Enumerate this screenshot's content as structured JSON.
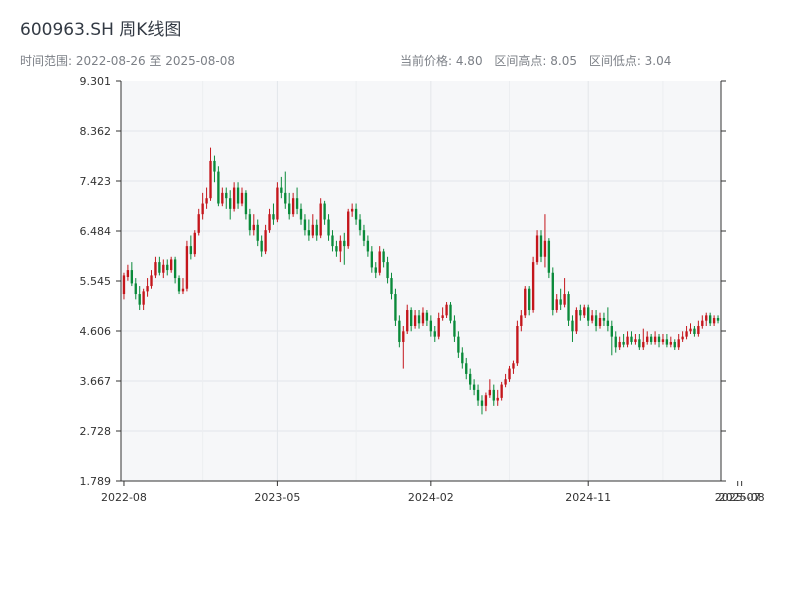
{
  "header": {
    "title": "600963.SH 周K线图",
    "time_range": "时间范围: 2022-08-26 至 2025-08-08",
    "current_price": "当前价格: 4.80",
    "range_high": "区间高点: 8.05",
    "range_low": "区间低点: 3.04"
  },
  "chart_data": {
    "type": "candlestick",
    "title": "600963.SH 周K线图",
    "date_range": [
      "2022-08-26",
      "2025-08-08"
    ],
    "ylim": [
      1.789,
      9.301
    ],
    "y_ticks": [
      "1.789",
      "2.728",
      "3.667",
      "4.606",
      "5.545",
      "6.484",
      "7.423",
      "8.362",
      "9.301"
    ],
    "x_ticks": [
      {
        "label": "2022-08",
        "index": 0
      },
      {
        "label": "2023-05",
        "index": 39
      },
      {
        "label": "2024-02",
        "index": 78
      },
      {
        "label": "2024-11",
        "index": 118
      },
      {
        "label": "2025-07",
        "index": 156
      },
      {
        "label": "2025-08",
        "index": 157
      }
    ],
    "grid": true,
    "up_color": "#c4161c",
    "down_color": "#0a8a3a",
    "candles": [
      [
        5.3,
        5.65,
        5.7,
        5.2
      ],
      [
        5.62,
        5.75,
        5.85,
        5.55
      ],
      [
        5.75,
        5.5,
        5.9,
        5.45
      ],
      [
        5.5,
        5.3,
        5.6,
        5.2
      ],
      [
        5.3,
        5.1,
        5.45,
        5.0
      ],
      [
        5.1,
        5.35,
        5.4,
        5.0
      ],
      [
        5.35,
        5.45,
        5.6,
        5.25
      ],
      [
        5.45,
        5.65,
        5.75,
        5.4
      ],
      [
        5.65,
        5.9,
        6.0,
        5.6
      ],
      [
        5.9,
        5.7,
        6.0,
        5.65
      ],
      [
        5.7,
        5.85,
        5.95,
        5.6
      ],
      [
        5.85,
        5.75,
        5.95,
        5.65
      ],
      [
        5.75,
        5.95,
        6.0,
        5.7
      ],
      [
        5.95,
        5.6,
        6.0,
        5.5
      ],
      [
        5.6,
        5.35,
        5.65,
        5.3
      ],
      [
        5.35,
        5.4,
        5.6,
        5.3
      ],
      [
        5.4,
        6.2,
        6.3,
        5.35
      ],
      [
        6.2,
        6.05,
        6.4,
        5.95
      ],
      [
        6.05,
        6.45,
        6.5,
        6.0
      ],
      [
        6.45,
        6.8,
        6.9,
        6.4
      ],
      [
        6.8,
        7.0,
        7.2,
        6.7
      ],
      [
        7.0,
        7.1,
        7.3,
        6.9
      ],
      [
        7.1,
        7.8,
        8.05,
        7.05
      ],
      [
        7.8,
        7.6,
        7.9,
        7.4
      ],
      [
        7.6,
        7.0,
        7.7,
        6.95
      ],
      [
        7.0,
        7.2,
        7.3,
        6.95
      ],
      [
        7.2,
        7.1,
        7.3,
        6.9
      ],
      [
        7.1,
        6.9,
        7.25,
        6.7
      ],
      [
        6.9,
        7.3,
        7.4,
        6.85
      ],
      [
        7.3,
        7.0,
        7.4,
        6.9
      ],
      [
        7.0,
        7.2,
        7.3,
        6.95
      ],
      [
        7.2,
        6.8,
        7.25,
        6.7
      ],
      [
        6.8,
        6.5,
        6.9,
        6.4
      ],
      [
        6.5,
        6.6,
        6.8,
        6.4
      ],
      [
        6.6,
        6.3,
        6.7,
        6.2
      ],
      [
        6.3,
        6.1,
        6.4,
        6.0
      ],
      [
        6.1,
        6.5,
        6.6,
        6.05
      ],
      [
        6.5,
        6.8,
        6.9,
        6.45
      ],
      [
        6.8,
        6.7,
        7.0,
        6.6
      ],
      [
        6.7,
        7.3,
        7.4,
        6.65
      ],
      [
        7.3,
        7.2,
        7.5,
        7.1
      ],
      [
        7.2,
        7.0,
        7.6,
        6.9
      ],
      [
        7.0,
        6.8,
        7.2,
        6.7
      ],
      [
        6.8,
        7.1,
        7.2,
        6.75
      ],
      [
        7.1,
        6.9,
        7.3,
        6.8
      ],
      [
        6.9,
        6.7,
        7.0,
        6.6
      ],
      [
        6.7,
        6.5,
        6.8,
        6.4
      ],
      [
        6.5,
        6.4,
        6.7,
        6.3
      ],
      [
        6.4,
        6.6,
        6.8,
        6.35
      ],
      [
        6.6,
        6.4,
        6.7,
        6.3
      ],
      [
        6.4,
        7.0,
        7.1,
        6.35
      ],
      [
        7.0,
        6.7,
        7.05,
        6.6
      ],
      [
        6.7,
        6.4,
        6.8,
        6.3
      ],
      [
        6.4,
        6.2,
        6.5,
        6.1
      ],
      [
        6.2,
        6.1,
        6.3,
        6.0
      ],
      [
        6.1,
        6.3,
        6.4,
        5.9
      ],
      [
        6.3,
        6.2,
        6.45,
        5.85
      ],
      [
        6.2,
        6.85,
        6.9,
        6.15
      ],
      [
        6.85,
        6.9,
        7.0,
        6.75
      ],
      [
        6.9,
        6.7,
        7.0,
        6.6
      ],
      [
        6.7,
        6.5,
        6.8,
        6.4
      ],
      [
        6.5,
        6.3,
        6.6,
        6.2
      ],
      [
        6.3,
        6.1,
        6.4,
        6.0
      ],
      [
        6.1,
        5.8,
        6.2,
        5.7
      ],
      [
        5.8,
        5.7,
        5.9,
        5.6
      ],
      [
        5.7,
        6.1,
        6.2,
        5.65
      ],
      [
        6.1,
        5.9,
        6.15,
        5.8
      ],
      [
        5.9,
        5.6,
        6.0,
        5.5
      ],
      [
        5.6,
        5.3,
        5.7,
        5.2
      ],
      [
        5.3,
        4.8,
        5.4,
        4.7
      ],
      [
        4.8,
        4.4,
        4.9,
        4.3
      ],
      [
        4.4,
        4.6,
        4.7,
        3.9
      ],
      [
        4.6,
        5.0,
        5.1,
        4.55
      ],
      [
        5.0,
        4.7,
        5.05,
        4.6
      ],
      [
        4.7,
        4.9,
        5.0,
        4.65
      ],
      [
        4.9,
        4.75,
        5.0,
        4.65
      ],
      [
        4.75,
        4.95,
        5.05,
        4.7
      ],
      [
        4.95,
        4.8,
        5.0,
        4.7
      ],
      [
        4.8,
        4.6,
        4.9,
        4.5
      ],
      [
        4.6,
        4.5,
        4.7,
        4.4
      ],
      [
        4.5,
        4.85,
        4.95,
        4.45
      ],
      [
        4.85,
        4.9,
        5.05,
        4.8
      ],
      [
        4.9,
        5.1,
        5.15,
        4.85
      ],
      [
        5.1,
        4.8,
        5.15,
        4.75
      ],
      [
        4.8,
        4.5,
        4.9,
        4.4
      ],
      [
        4.5,
        4.2,
        4.6,
        4.1
      ],
      [
        4.2,
        4.0,
        4.3,
        3.9
      ],
      [
        4.0,
        3.8,
        4.1,
        3.7
      ],
      [
        3.8,
        3.6,
        3.9,
        3.5
      ],
      [
        3.6,
        3.5,
        3.7,
        3.4
      ],
      [
        3.5,
        3.3,
        3.6,
        3.2
      ],
      [
        3.3,
        3.2,
        3.4,
        3.04
      ],
      [
        3.2,
        3.4,
        3.45,
        3.1
      ],
      [
        3.4,
        3.5,
        3.7,
        3.35
      ],
      [
        3.5,
        3.3,
        3.6,
        3.2
      ],
      [
        3.3,
        3.35,
        3.5,
        3.2
      ],
      [
        3.35,
        3.6,
        3.65,
        3.3
      ],
      [
        3.6,
        3.7,
        3.8,
        3.55
      ],
      [
        3.7,
        3.9,
        3.95,
        3.65
      ],
      [
        3.9,
        4.0,
        4.05,
        3.8
      ],
      [
        4.0,
        4.7,
        4.8,
        3.95
      ],
      [
        4.7,
        4.9,
        5.0,
        4.6
      ],
      [
        4.9,
        5.4,
        5.45,
        4.85
      ],
      [
        5.4,
        5.0,
        5.45,
        4.9
      ],
      [
        5.0,
        5.9,
        6.0,
        4.95
      ],
      [
        5.9,
        6.4,
        6.5,
        5.85
      ],
      [
        6.4,
        6.0,
        6.5,
        5.9
      ],
      [
        6.0,
        6.3,
        6.8,
        5.8
      ],
      [
        6.3,
        5.7,
        6.35,
        5.6
      ],
      [
        5.7,
        5.0,
        5.8,
        4.9
      ],
      [
        5.0,
        5.2,
        5.3,
        4.95
      ],
      [
        5.2,
        5.1,
        5.4,
        5.0
      ],
      [
        5.1,
        5.3,
        5.6,
        5.05
      ],
      [
        5.3,
        4.8,
        5.35,
        4.7
      ],
      [
        4.8,
        4.6,
        4.9,
        4.4
      ],
      [
        4.6,
        5.0,
        5.05,
        4.55
      ],
      [
        5.0,
        4.9,
        5.1,
        4.8
      ],
      [
        4.9,
        5.05,
        5.1,
        4.85
      ],
      [
        5.05,
        4.8,
        5.1,
        4.7
      ],
      [
        4.8,
        4.9,
        5.0,
        4.75
      ],
      [
        4.9,
        4.7,
        5.0,
        4.6
      ],
      [
        4.7,
        4.85,
        4.95,
        4.65
      ],
      [
        4.85,
        4.8,
        4.95,
        4.7
      ],
      [
        4.8,
        4.7,
        5.05,
        4.6
      ],
      [
        4.7,
        4.5,
        4.8,
        4.15
      ],
      [
        4.5,
        4.3,
        4.6,
        4.2
      ],
      [
        4.3,
        4.4,
        4.5,
        4.25
      ],
      [
        4.4,
        4.35,
        4.55,
        4.3
      ],
      [
        4.35,
        4.5,
        4.6,
        4.3
      ],
      [
        4.5,
        4.4,
        4.6,
        4.35
      ],
      [
        4.4,
        4.45,
        4.55,
        4.35
      ],
      [
        4.45,
        4.3,
        4.55,
        4.25
      ],
      [
        4.3,
        4.4,
        4.65,
        4.25
      ],
      [
        4.4,
        4.5,
        4.6,
        4.35
      ],
      [
        4.5,
        4.4,
        4.55,
        4.35
      ],
      [
        4.4,
        4.5,
        4.6,
        4.35
      ],
      [
        4.5,
        4.4,
        4.55,
        4.3
      ],
      [
        4.4,
        4.45,
        4.55,
        4.35
      ],
      [
        4.45,
        4.35,
        4.55,
        4.3
      ],
      [
        4.35,
        4.4,
        4.5,
        4.3
      ],
      [
        4.4,
        4.3,
        4.45,
        4.25
      ],
      [
        4.3,
        4.45,
        4.55,
        4.25
      ],
      [
        4.45,
        4.5,
        4.6,
        4.4
      ],
      [
        4.5,
        4.6,
        4.7,
        4.45
      ],
      [
        4.6,
        4.65,
        4.75,
        4.55
      ],
      [
        4.65,
        4.55,
        4.7,
        4.5
      ],
      [
        4.55,
        4.7,
        4.8,
        4.5
      ],
      [
        4.7,
        4.8,
        4.9,
        4.65
      ],
      [
        4.8,
        4.9,
        4.95,
        4.7
      ],
      [
        4.9,
        4.75,
        4.95,
        4.7
      ],
      [
        4.75,
        4.85,
        4.9,
        4.7
      ],
      [
        4.85,
        4.8,
        4.9,
        4.75
      ]
    ]
  }
}
